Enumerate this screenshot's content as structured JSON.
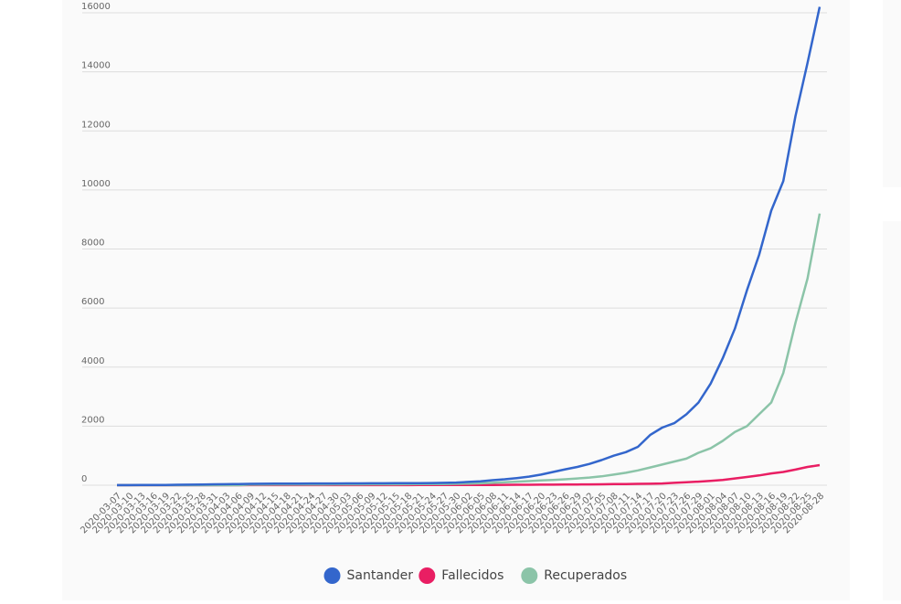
{
  "chart_data": {
    "type": "line",
    "x": [
      "2020-03-07",
      "2020-03-10",
      "2020-03-13",
      "2020-03-16",
      "2020-03-19",
      "2020-03-22",
      "2020-03-25",
      "2020-03-28",
      "2020-03-31",
      "2020-04-03",
      "2020-04-06",
      "2020-04-09",
      "2020-04-12",
      "2020-04-15",
      "2020-04-18",
      "2020-04-21",
      "2020-04-24",
      "2020-04-27",
      "2020-04-30",
      "2020-05-03",
      "2020-05-06",
      "2020-05-09",
      "2020-05-12",
      "2020-05-15",
      "2020-05-18",
      "2020-05-21",
      "2020-05-24",
      "2020-05-27",
      "2020-05-30",
      "2020-06-02",
      "2020-06-05",
      "2020-06-08",
      "2020-06-11",
      "2020-06-14",
      "2020-06-17",
      "2020-06-20",
      "2020-06-23",
      "2020-06-26",
      "2020-06-29",
      "2020-07-02",
      "2020-07-05",
      "2020-07-08",
      "2020-07-11",
      "2020-07-14",
      "2020-07-17",
      "2020-07-20",
      "2020-07-23",
      "2020-07-26",
      "2020-07-29",
      "2020-08-01",
      "2020-08-04",
      "2020-08-07",
      "2020-08-10",
      "2020-08-13",
      "2020-08-16",
      "2020-08-19",
      "2020-08-22",
      "2020-08-25",
      "2020-08-28"
    ],
    "series": [
      {
        "name": "Santander",
        "color": "#3366cc",
        "values": [
          2,
          3,
          5,
          8,
          10,
          15,
          20,
          25,
          30,
          35,
          40,
          45,
          50,
          52,
          55,
          57,
          58,
          60,
          60,
          62,
          63,
          65,
          66,
          68,
          70,
          72,
          75,
          80,
          90,
          110,
          130,
          170,
          200,
          240,
          290,
          360,
          450,
          540,
          620,
          720,
          850,
          1000,
          1120,
          1300,
          1700,
          1950,
          2100,
          2400,
          2800,
          3440,
          4300,
          5300,
          6600,
          7800,
          9300,
          10300,
          12500,
          14300,
          16200
        ]
      },
      {
        "name": "Fallecidos",
        "color": "#e91e63",
        "values": [
          0,
          0,
          0,
          0,
          0,
          0,
          0,
          0,
          0,
          0,
          0,
          2,
          2,
          2,
          3,
          3,
          3,
          3,
          3,
          3,
          4,
          4,
          4,
          4,
          4,
          5,
          5,
          5,
          5,
          6,
          8,
          10,
          12,
          14,
          16,
          18,
          20,
          22,
          25,
          28,
          32,
          36,
          40,
          45,
          50,
          60,
          80,
          100,
          120,
          150,
          180,
          230,
          280,
          330,
          400,
          450,
          530,
          620,
          680
        ]
      },
      {
        "name": "Recuperados",
        "color": "#8bc4a8",
        "values": [
          0,
          0,
          0,
          0,
          0,
          0,
          0,
          0,
          0,
          0,
          0,
          20,
          20,
          22,
          22,
          24,
          25,
          26,
          27,
          28,
          29,
          30,
          31,
          32,
          34,
          36,
          38,
          40,
          45,
          55,
          65,
          80,
          100,
          120,
          140,
          160,
          180,
          200,
          230,
          260,
          300,
          360,
          420,
          500,
          600,
          700,
          800,
          900,
          1100,
          1250,
          1500,
          1800,
          2000,
          2400,
          2800,
          3800,
          5500,
          7000,
          9200
        ]
      }
    ],
    "ylim": [
      0,
      16000
    ],
    "yticks": [
      0,
      2000,
      4000,
      6000,
      8000,
      10000,
      12000,
      14000,
      16000
    ],
    "grid": true,
    "legend": "bottom"
  }
}
